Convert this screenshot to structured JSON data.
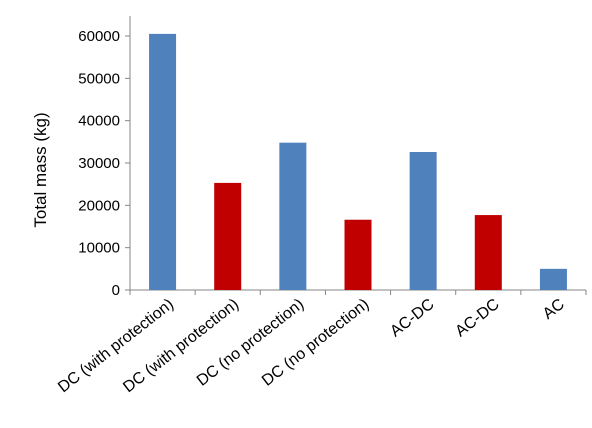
{
  "chart_data": {
    "type": "bar",
    "ylabel": "Total mass (kg)",
    "xlabel": "",
    "ylim": [
      0,
      60000
    ],
    "yticks": [
      0,
      10000,
      20000,
      30000,
      40000,
      50000,
      60000
    ],
    "ytick_labels": [
      "0",
      "10000",
      "20000",
      "30000",
      "40000",
      "50000",
      "60000"
    ],
    "grid": false,
    "legend": "none",
    "categories": [
      "DC (with protection)",
      "DC (with protection)",
      "DC (no protection)",
      "DC (no protection)",
      "AC-DC",
      "AC-DC",
      "AC"
    ],
    "values": [
      60500,
      25300,
      34800,
      16600,
      32600,
      17700,
      5000
    ],
    "bar_colors": [
      "#4F81BD",
      "#C00000",
      "#4F81BD",
      "#C00000",
      "#4F81BD",
      "#C00000",
      "#4F81BD"
    ],
    "axis_color": "#868686"
  }
}
